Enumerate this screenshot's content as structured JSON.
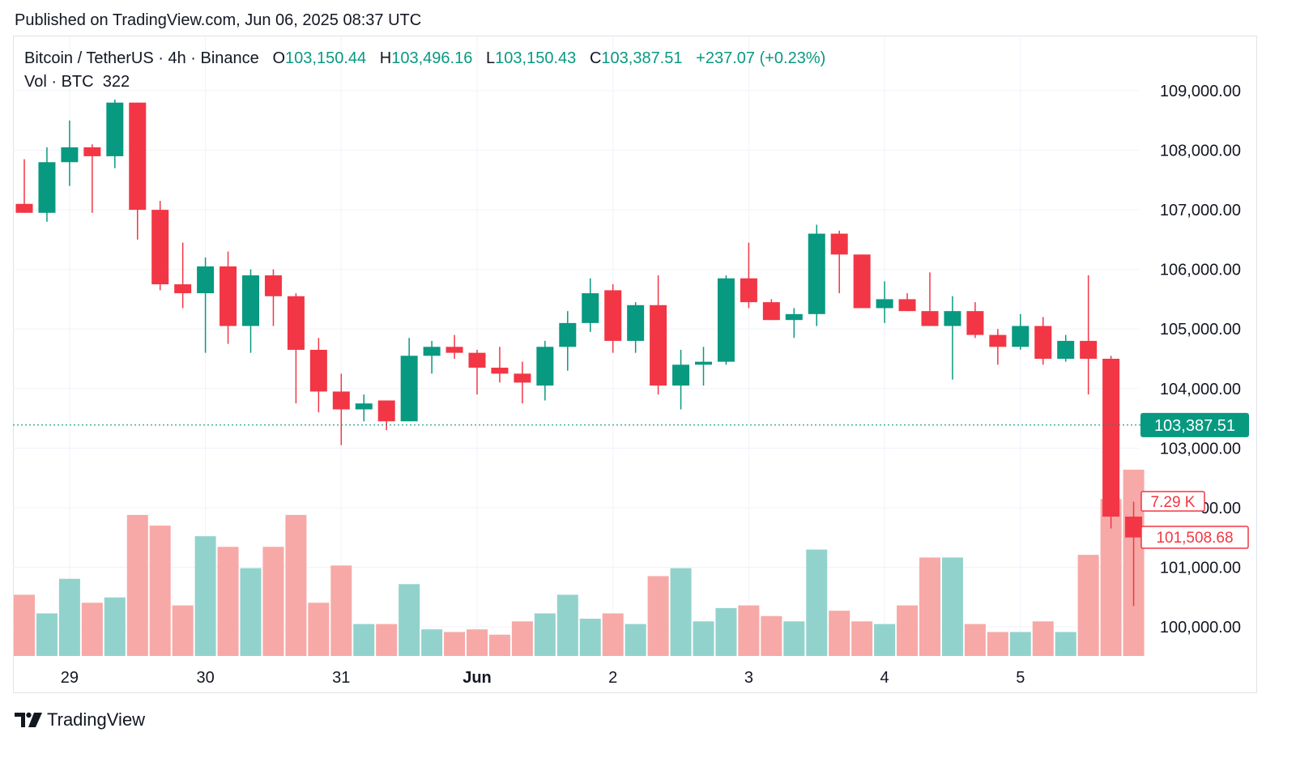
{
  "published": "Published on TradingView.com, Jun 06, 2025 08:37 UTC",
  "legend": {
    "symbol": "Bitcoin / TetherUS · 4h · Binance",
    "o_label": "O",
    "o_value": "103,150.44",
    "h_label": "H",
    "h_value": "103,496.16",
    "l_label": "L",
    "l_value": "103,150.43",
    "c_label": "C",
    "c_value": "103,387.51",
    "change": "+237.07 (+0.23%)",
    "vol_label": "Vol · BTC",
    "vol_value": "322"
  },
  "footer": {
    "brand": "TradingView"
  },
  "colors": {
    "up": "#089981",
    "down": "#f23645",
    "up_vol": "#92d2cc",
    "down_vol": "#f7a9a7",
    "grid": "#f0f3fa"
  },
  "chart_data": {
    "type": "candlestick",
    "price_axis": {
      "ticks": [
        "109,000.00",
        "108,000.00",
        "107,000.00",
        "106,000.00",
        "105,000.00",
        "104,000.00",
        "103,000.00",
        "101,000.00",
        "100,000.00"
      ],
      "tick_values": [
        109000,
        108000,
        107000,
        106000,
        105000,
        104000,
        103000,
        101000,
        100000
      ],
      "range": [
        99600,
        109300
      ]
    },
    "time_axis": {
      "labels": [
        "29",
        "30",
        "31",
        "Jun",
        "2",
        "3",
        "4",
        "5"
      ],
      "label_bar_index": [
        2,
        8,
        14,
        20,
        26,
        32,
        38,
        44
      ]
    },
    "current_price_label": "103,387.51",
    "current_price": 103387.51,
    "overlay_labels": {
      "volume_marker": "7.29 K",
      "price_marker": "101,508.68",
      "partial_tick": "00.00"
    },
    "candles": [
      {
        "o": 107100,
        "h": 107850,
        "l": 106950,
        "c": 106950
      },
      {
        "o": 106950,
        "h": 108050,
        "l": 106800,
        "c": 107800
      },
      {
        "o": 107800,
        "h": 108500,
        "l": 107400,
        "c": 108050
      },
      {
        "o": 108050,
        "h": 108100,
        "l": 106950,
        "c": 107900
      },
      {
        "o": 107900,
        "h": 108850,
        "l": 107700,
        "c": 108800
      },
      {
        "o": 108800,
        "h": 108800,
        "l": 106500,
        "c": 107000
      },
      {
        "o": 107000,
        "h": 107150,
        "l": 105650,
        "c": 105750
      },
      {
        "o": 105750,
        "h": 106450,
        "l": 105350,
        "c": 105600
      },
      {
        "o": 105600,
        "h": 106200,
        "l": 104600,
        "c": 106050
      },
      {
        "o": 106050,
        "h": 106300,
        "l": 104750,
        "c": 105050
      },
      {
        "o": 105050,
        "h": 106000,
        "l": 104600,
        "c": 105900
      },
      {
        "o": 105900,
        "h": 106000,
        "l": 105050,
        "c": 105550
      },
      {
        "o": 105550,
        "h": 105600,
        "l": 103750,
        "c": 104650
      },
      {
        "o": 104650,
        "h": 104850,
        "l": 103600,
        "c": 103950
      },
      {
        "o": 103950,
        "h": 104250,
        "l": 103050,
        "c": 103650
      },
      {
        "o": 103650,
        "h": 103900,
        "l": 103450,
        "c": 103750
      },
      {
        "o": 103800,
        "h": 103800,
        "l": 103300,
        "c": 103450
      },
      {
        "o": 103450,
        "h": 104850,
        "l": 103450,
        "c": 104550
      },
      {
        "o": 104550,
        "h": 104800,
        "l": 104250,
        "c": 104700
      },
      {
        "o": 104700,
        "h": 104900,
        "l": 104500,
        "c": 104600
      },
      {
        "o": 104600,
        "h": 104650,
        "l": 103900,
        "c": 104350
      },
      {
        "o": 104350,
        "h": 104700,
        "l": 104100,
        "c": 104250
      },
      {
        "o": 104250,
        "h": 104450,
        "l": 103750,
        "c": 104100
      },
      {
        "o": 104050,
        "h": 104800,
        "l": 103800,
        "c": 104700
      },
      {
        "o": 104700,
        "h": 105300,
        "l": 104300,
        "c": 105100
      },
      {
        "o": 105100,
        "h": 105850,
        "l": 104950,
        "c": 105600
      },
      {
        "o": 105650,
        "h": 105750,
        "l": 104600,
        "c": 104800
      },
      {
        "o": 104800,
        "h": 105450,
        "l": 104600,
        "c": 105400
      },
      {
        "o": 105400,
        "h": 105900,
        "l": 103900,
        "c": 104050
      },
      {
        "o": 104050,
        "h": 104650,
        "l": 103650,
        "c": 104400
      },
      {
        "o": 104400,
        "h": 104700,
        "l": 104050,
        "c": 104450
      },
      {
        "o": 104450,
        "h": 105900,
        "l": 104400,
        "c": 105850
      },
      {
        "o": 105850,
        "h": 106450,
        "l": 105350,
        "c": 105450
      },
      {
        "o": 105450,
        "h": 105500,
        "l": 105150,
        "c": 105150
      },
      {
        "o": 105150,
        "h": 105350,
        "l": 104850,
        "c": 105250
      },
      {
        "o": 105250,
        "h": 106750,
        "l": 105050,
        "c": 106600
      },
      {
        "o": 106600,
        "h": 106650,
        "l": 105600,
        "c": 106250
      },
      {
        "o": 106250,
        "h": 106250,
        "l": 105350,
        "c": 105350
      },
      {
        "o": 105350,
        "h": 105800,
        "l": 105100,
        "c": 105500
      },
      {
        "o": 105500,
        "h": 105600,
        "l": 105300,
        "c": 105300
      },
      {
        "o": 105300,
        "h": 105950,
        "l": 105050,
        "c": 105050
      },
      {
        "o": 105050,
        "h": 105550,
        "l": 104150,
        "c": 105300
      },
      {
        "o": 105300,
        "h": 105450,
        "l": 104850,
        "c": 104900
      },
      {
        "o": 104900,
        "h": 105000,
        "l": 104400,
        "c": 104700
      },
      {
        "o": 104700,
        "h": 105250,
        "l": 104650,
        "c": 105050
      },
      {
        "o": 105050,
        "h": 105200,
        "l": 104400,
        "c": 104500
      },
      {
        "o": 104500,
        "h": 104900,
        "l": 104450,
        "c": 104800
      },
      {
        "o": 104800,
        "h": 105900,
        "l": 103900,
        "c": 104500
      },
      {
        "o": 104500,
        "h": 104550,
        "l": 101650,
        "c": 101850
      },
      {
        "o": 101850,
        "h": 102100,
        "l": 100350,
        "c": 101500
      }
    ],
    "volume_fraction": [
      0.23,
      0.16,
      0.29,
      0.2,
      0.22,
      0.53,
      0.49,
      0.19,
      0.45,
      0.41,
      0.33,
      0.41,
      0.53,
      0.2,
      0.34,
      0.12,
      0.12,
      0.27,
      0.1,
      0.09,
      0.1,
      0.08,
      0.13,
      0.16,
      0.23,
      0.14,
      0.16,
      0.12,
      0.3,
      0.33,
      0.13,
      0.18,
      0.19,
      0.15,
      0.13,
      0.4,
      0.17,
      0.13,
      0.12,
      0.19,
      0.37,
      0.37,
      0.12,
      0.09,
      0.09,
      0.13,
      0.09,
      0.38,
      0.59,
      0.7
    ]
  }
}
